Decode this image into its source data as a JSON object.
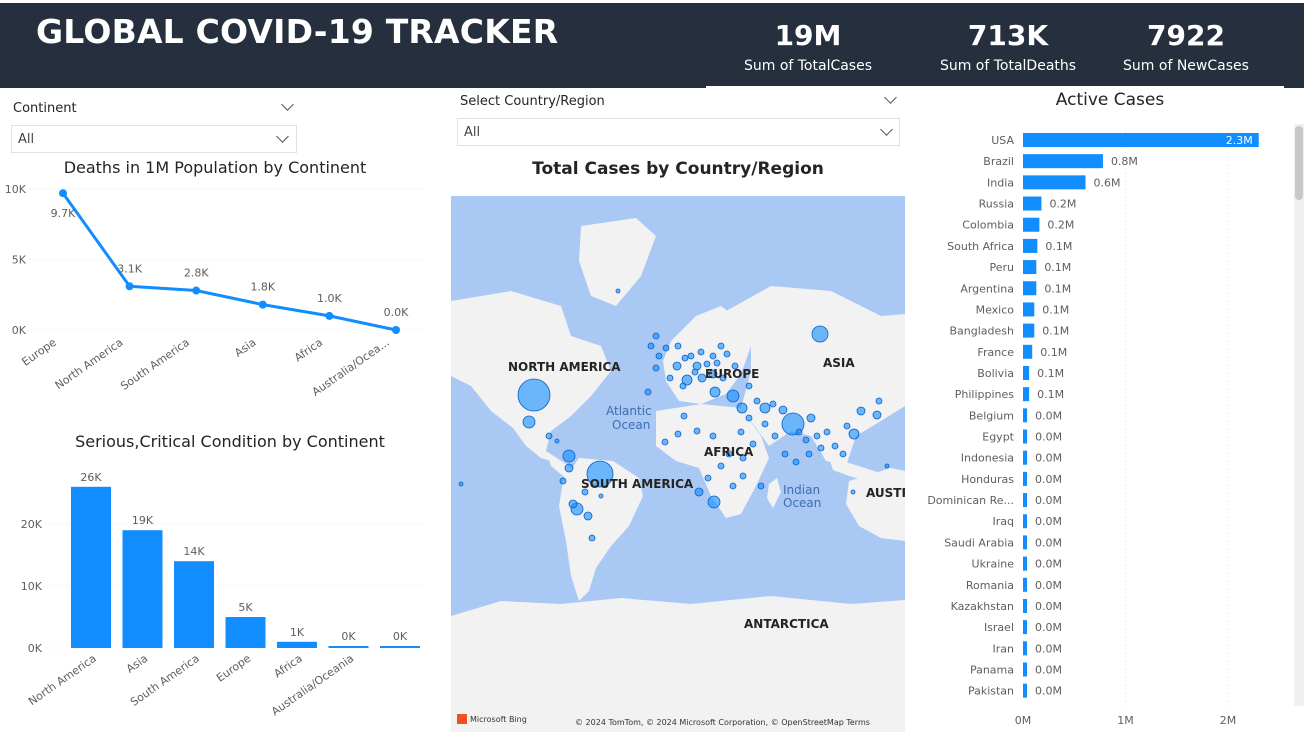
{
  "header": {
    "title": "GLOBAL COVID-19 TRACKER",
    "kpis": [
      {
        "value": "19M",
        "label": "Sum of TotalCases"
      },
      {
        "value": "713K",
        "label": "Sum of TotalDeaths"
      },
      {
        "value": "7922",
        "label": "Sum of NewCases"
      }
    ]
  },
  "continent_slicer": {
    "label": "Continent",
    "value": "All"
  },
  "country_slicer": {
    "label": "Select Country/Region",
    "value": "All"
  },
  "deaths_chart": {
    "title": "Deaths in 1M Population by Continent",
    "chart_data": {
      "type": "line",
      "categories": [
        "Europe",
        "North America",
        "South America",
        "Asia",
        "Africa",
        "Australia/Ocea..."
      ],
      "values": [
        9700,
        3100,
        2800,
        1800,
        1000,
        0
      ],
      "data_labels": [
        "9.7K",
        "3.1K",
        "2.8K",
        "1.8K",
        "1.0K",
        "0.0K"
      ],
      "yticks": [
        "0K",
        "5K",
        "10K"
      ],
      "ylim": [
        0,
        10000
      ],
      "color": "#118dff"
    }
  },
  "critical_chart": {
    "title": "Serious,Critical Condition by Continent",
    "chart_data": {
      "type": "bar",
      "categories": [
        "North America",
        "Asia",
        "South America",
        "Europe",
        "Africa",
        "Australia/Oceania",
        ""
      ],
      "values": [
        26000,
        19000,
        14000,
        5000,
        1000,
        300,
        200
      ],
      "data_labels": [
        "26K",
        "19K",
        "14K",
        "5K",
        "1K",
        "0K",
        "0K"
      ],
      "yticks": [
        "0K",
        "10K",
        "20K"
      ],
      "ylim": [
        0,
        30000
      ],
      "color": "#118dff"
    }
  },
  "map": {
    "title": "Total Cases by Country/Region",
    "labels": {
      "north_america": "NORTH AMERICA",
      "europe": "EUROPE",
      "asia": "ASIA",
      "africa": "AFRICA",
      "south_america": "SOUTH AMERICA",
      "australia": "AUSTRA",
      "antarctica": "ANTARCTICA",
      "atlantic1": "Atlantic",
      "atlantic2": "Ocean",
      "indian1": "Indian",
      "indian2": "Ocean"
    },
    "attribution": "© 2024 TomTom, © 2024 Microsoft Corporation, © OpenStreetMap  Terms",
    "bing_logo": "Microsoft Bing",
    "colors": {
      "water": "#a9c8f4",
      "land": "#f2f2f2",
      "bubble": "#118dff"
    }
  },
  "active_cases": {
    "title": "Active Cases",
    "chart_data": {
      "type": "bar",
      "orientation": "horizontal",
      "categories": [
        "USA",
        "Brazil",
        "India",
        "Russia",
        "Colombia",
        "South Africa",
        "Peru",
        "Argentina",
        "Mexico",
        "Bangladesh",
        "France",
        "Bolivia",
        "Philippines",
        "Belgium",
        "Egypt",
        "Indonesia",
        "Honduras",
        "Dominican Re...",
        "Iraq",
        "Saudi Arabia",
        "Ukraine",
        "Romania",
        "Kazakhstan",
        "Israel",
        "Iran",
        "Panama",
        "Pakistan"
      ],
      "values": [
        2300000,
        780000,
        610000,
        180000,
        160000,
        140000,
        130000,
        130000,
        110000,
        110000,
        90000,
        60000,
        60000,
        40000,
        40000,
        40000,
        30000,
        30000,
        30000,
        30000,
        30000,
        30000,
        30000,
        30000,
        30000,
        25000,
        25000
      ],
      "data_labels": [
        "2.3M",
        "0.8M",
        "0.6M",
        "0.2M",
        "0.2M",
        "0.1M",
        "0.1M",
        "0.1M",
        "0.1M",
        "0.1M",
        "0.1M",
        "0.1M",
        "0.1M",
        "0.0M",
        "0.0M",
        "0.0M",
        "0.0M",
        "0.0M",
        "0.0M",
        "0.0M",
        "0.0M",
        "0.0M",
        "0.0M",
        "0.0M",
        "0.0M",
        "0.0M",
        "0.0M"
      ],
      "xticks": [
        "0M",
        "1M",
        "2M"
      ],
      "xlim": [
        0,
        2000000
      ],
      "color": "#118dff"
    }
  }
}
